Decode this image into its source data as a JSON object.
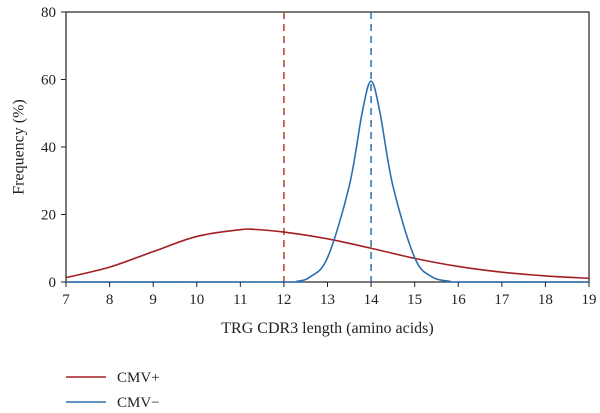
{
  "chart_data": {
    "type": "line",
    "xlabel": "TRG CDR3 length (amino acids)",
    "ylabel": "Frequency (%)",
    "xlim": [
      7,
      19
    ],
    "ylim": [
      0,
      80
    ],
    "x_ticks": [
      "7",
      "8",
      "9",
      "10",
      "11",
      "12",
      "13",
      "14",
      "15",
      "16",
      "17",
      "18",
      "19"
    ],
    "y_ticks": [
      "0",
      "20",
      "40",
      "60",
      "80"
    ],
    "grid": false,
    "legend_position": "bottom-left",
    "series": [
      {
        "name": "CMV+",
        "color": "#a31f24",
        "x": [
          7,
          8,
          9,
          10,
          11,
          11.3,
          12,
          13,
          14,
          15,
          16,
          17,
          18,
          19
        ],
        "y": [
          1.3,
          4.4,
          9.0,
          13.5,
          15.5,
          15.6,
          14.8,
          12.8,
          10.0,
          7.0,
          4.6,
          2.9,
          1.8,
          1.1
        ]
      },
      {
        "name": "CMV−",
        "color": "#2c6fad",
        "x": [
          7,
          12,
          12.3,
          12.6,
          13,
          13.5,
          13.8,
          14,
          14.2,
          14.5,
          15,
          15.4,
          15.8,
          16,
          19
        ],
        "y": [
          0,
          0,
          0.2,
          1.5,
          7.2,
          28.5,
          50.5,
          59.5,
          50.5,
          28.5,
          7.2,
          1.5,
          0.2,
          0,
          0
        ]
      }
    ],
    "reference_lines": [
      {
        "x": 12,
        "color": "#c0392b",
        "style": "dashed"
      },
      {
        "x": 14,
        "color": "#2c6fad",
        "style": "dashed"
      }
    ]
  }
}
